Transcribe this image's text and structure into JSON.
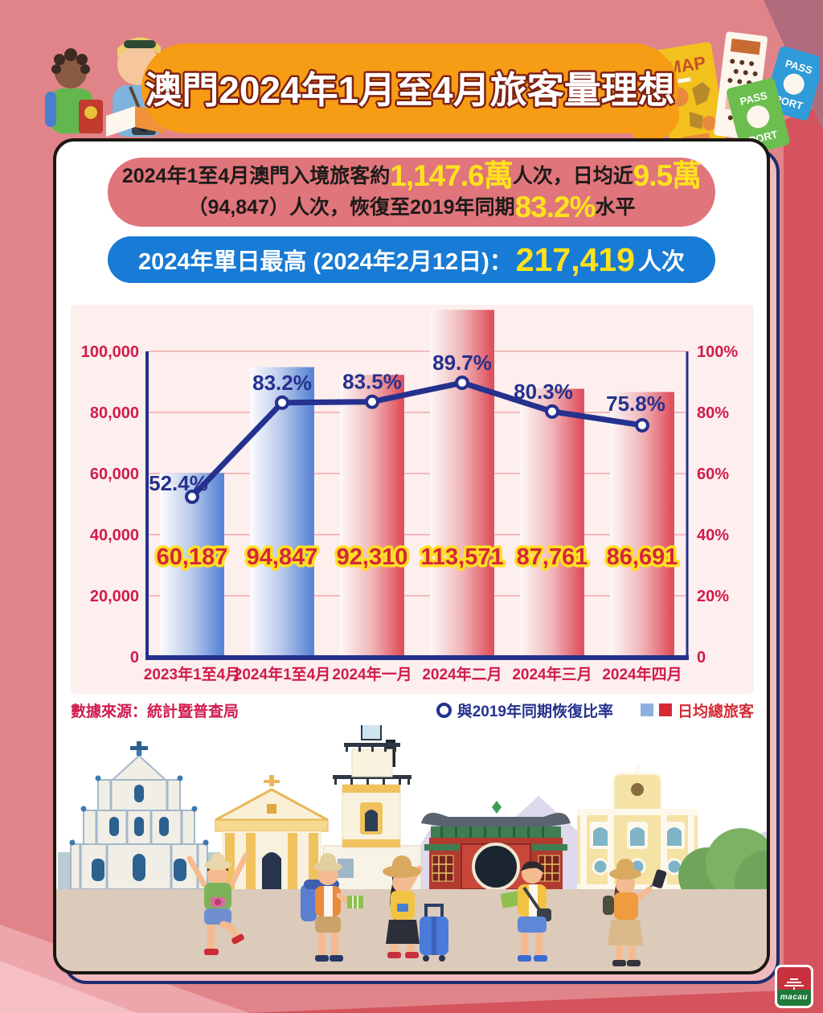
{
  "banner": {
    "title": "澳門2024年1月至4月旅客量理想"
  },
  "summary": {
    "line1_prefix": "2024年1至4月澳門入境旅客約",
    "line1_highlight1": "1,147.6萬",
    "line1_mid": "人次，日均近",
    "line1_highlight2": "9.5萬",
    "line2_prefix": "（94,847）人次，恢復至2019年同期",
    "line2_highlight": "83.2%",
    "line2_suffix": "水平"
  },
  "peak": {
    "label": "2024年單日最高 (2024年2月12日)：",
    "value": "217,419",
    "suffix": "人次"
  },
  "chart_data": {
    "type": "bar+line",
    "title": "",
    "categories": [
      "2023年1至4月",
      "2024年1至4月",
      "2024年一月",
      "2024年二月",
      "2024年三月",
      "2024年四月"
    ],
    "bar_series": {
      "name": "日均總旅客",
      "values": [
        60187,
        94847,
        92310,
        113571,
        87761,
        86691
      ],
      "labels": [
        "60,187",
        "94,847",
        "92,310",
        "113,571",
        "87,761",
        "86,691"
      ],
      "colors": [
        "blue",
        "blue",
        "red",
        "red",
        "red",
        "red"
      ]
    },
    "line_series": {
      "name": "與2019年同期恢復比率",
      "values_pct": [
        52.4,
        83.2,
        83.5,
        89.7,
        80.3,
        75.8
      ],
      "labels": [
        "52.4%",
        "83.2%",
        "83.5%",
        "89.7%",
        "80.3%",
        "75.8%"
      ]
    },
    "left_axis": {
      "min": 0,
      "max": 100000,
      "ticks": [
        "100,000",
        "80,000",
        "60,000",
        "40,000",
        "20,000",
        "0"
      ]
    },
    "right_axis": {
      "min": 0,
      "max": 100,
      "ticks": [
        "100%",
        "80%",
        "60%",
        "40%",
        "20%",
        "0"
      ]
    },
    "grid": true,
    "legend_position": "bottom-right"
  },
  "footer": {
    "source": "數據來源：統計暨普查局",
    "legend_line": "與2019年同期恢復比率",
    "legend_bar": "日均總旅客"
  },
  "decor": {
    "map_label": "MAP",
    "passport_top": "PASS",
    "passport_bottom": "PORT",
    "logo_text": "macau"
  },
  "colors": {
    "background_salmon": "#e18489",
    "background_red": "#d4535d",
    "banner_orange": "#f69c15",
    "summary_box_pink": "#e0757c",
    "peak_box_blue": "#187bd5",
    "highlight_yellow": "#ffe21c",
    "axis_navy": "#25318f",
    "tick_crimson": "#d01c4d",
    "bar_blue": "#5b86d6",
    "bar_red": "#e0525f",
    "value_label_red": "#d6263b",
    "value_label_outline": "#ffdf24"
  }
}
